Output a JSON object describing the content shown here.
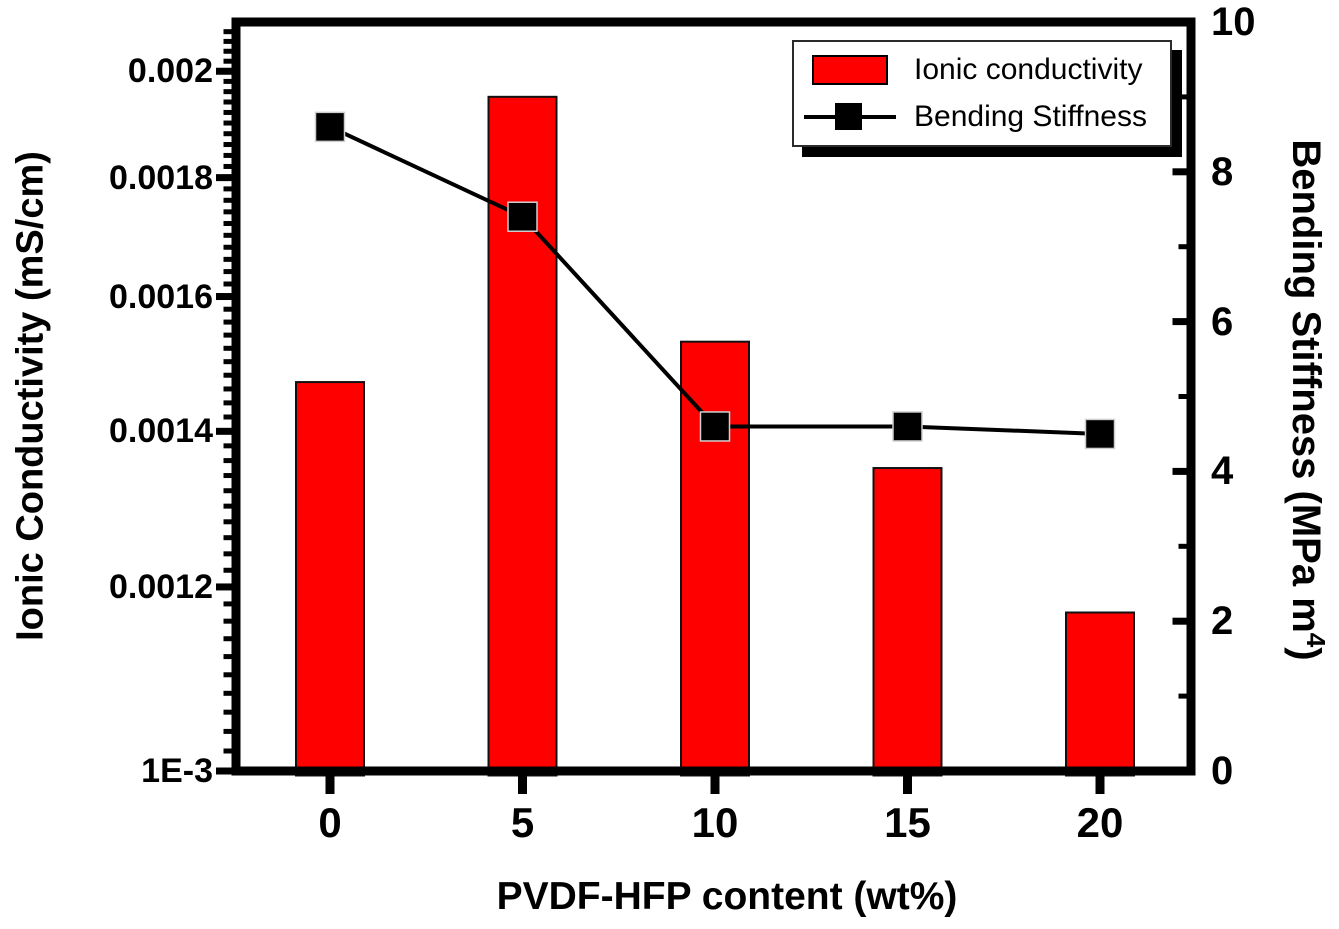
{
  "figure": {
    "background": "#ffffff",
    "frame_color": "#000000"
  },
  "chart_data": {
    "type": "bar",
    "subtype": "dual-axis bar + line",
    "categories": [
      0,
      5,
      10,
      15,
      20
    ],
    "x_tick_labels": [
      "0",
      "5",
      "10",
      "15",
      "20"
    ],
    "xlabel": "PVDF-HFP content (wt%)",
    "series": [
      {
        "name": "Ionic conductivity",
        "type": "bar",
        "axis": "left",
        "color": "#ff0000",
        "values": [
          0.00147,
          0.00195,
          0.00153,
          0.00135,
          0.00117
        ]
      },
      {
        "name": "Bending Stiffness",
        "type": "line",
        "axis": "right",
        "color": "#000000",
        "marker": "square",
        "values": [
          8.6,
          7.4,
          4.6,
          4.6,
          4.5
        ]
      }
    ],
    "left_axis": {
      "label": "Ionic Conductivity (mS/cm)",
      "scale": "log",
      "min": 0.001,
      "max": 0.0021,
      "tick_labels": [
        "0.002",
        "0.0018",
        "0.0016",
        "0.0014",
        "0.0012",
        "1E-3"
      ],
      "tick_values": [
        0.002,
        0.0018,
        0.0016,
        0.0014,
        0.0012,
        0.001
      ],
      "minor_tick_step": 2e-05
    },
    "right_axis": {
      "label": "Bending Stiffness (MPa m4)",
      "label_parts": {
        "pre": "Bending Stiffness  (MPa m",
        "sup": "4",
        "post": ")"
      },
      "scale": "linear",
      "min": 0,
      "max": 10,
      "tick_labels": [
        "10",
        "8",
        "6",
        "4",
        "2",
        "0"
      ],
      "tick_values": [
        10,
        8,
        6,
        4,
        2,
        0
      ],
      "minor_tick_values": [
        9,
        7,
        5,
        3,
        1
      ]
    },
    "legend": {
      "position": "top-right",
      "entries": [
        "Ionic conductivity",
        "Bending Stiffness"
      ]
    },
    "grid": false,
    "title": ""
  }
}
